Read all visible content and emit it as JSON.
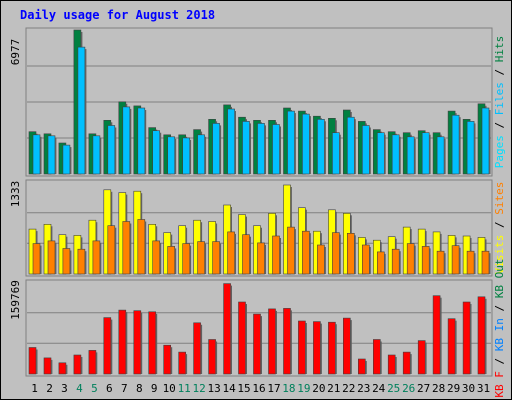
{
  "chart_data": {
    "type": "bar",
    "title": "Daily usage for August 2018",
    "categories": [
      "1",
      "2",
      "3",
      "4",
      "5",
      "6",
      "7",
      "8",
      "9",
      "10",
      "11",
      "12",
      "13",
      "14",
      "15",
      "16",
      "17",
      "18",
      "19",
      "20",
      "21",
      "22",
      "23",
      "24",
      "25",
      "26",
      "27",
      "28",
      "29",
      "30",
      "31"
    ],
    "weekend_days": [
      "4",
      "5",
      "11",
      "12",
      "18",
      "19",
      "25",
      "26"
    ],
    "panels": [
      {
        "id": "hits-files-pages",
        "ymax_label": "6977",
        "ylim": [
          0,
          6977
        ],
        "legend": [
          "Pages",
          "Files",
          "Hits"
        ],
        "series": [
          {
            "name": "Hits",
            "color": "#008040",
            "values": [
              2050,
              1950,
              1500,
              6977,
              1950,
              2600,
              3500,
              3300,
              2250,
              1900,
              1900,
              2150,
              2650,
              3350,
              2750,
              2600,
              2600,
              3200,
              3050,
              2800,
              2700,
              3100,
              2550,
              2150,
              2050,
              2000,
              2100,
              2000,
              3050,
              2650,
              3400
            ]
          },
          {
            "name": "Files",
            "color": "#00C0FF",
            "values": [
              1900,
              1850,
              1400,
              6150,
              1850,
              2350,
              3250,
              3200,
              2100,
              1800,
              1750,
              1900,
              2450,
              3150,
              2550,
              2450,
              2400,
              3050,
              2900,
              2650,
              2000,
              2750,
              2350,
              2000,
              1900,
              1800,
              2000,
              1800,
              2850,
              2550,
              3200
            ]
          },
          {
            "name": "Pages",
            "color": "#00E0FF",
            "values": [
              0,
              0,
              0,
              0,
              0,
              0,
              0,
              0,
              0,
              0,
              0,
              0,
              0,
              0,
              0,
              0,
              0,
              0,
              0,
              0,
              0,
              0,
              0,
              0,
              0,
              0,
              0,
              0,
              0,
              0,
              0
            ]
          }
        ]
      },
      {
        "id": "visits-sites",
        "ymax_label": "1333",
        "ylim": [
          0,
          1333
        ],
        "legend": [
          "Visits",
          "Sites"
        ],
        "series": [
          {
            "name": "Visits",
            "color": "#FFFF00",
            "values": [
              650,
              720,
              570,
              560,
              780,
              1220,
              1180,
              1200,
              720,
              600,
              700,
              780,
              760,
              1000,
              860,
              700,
              880,
              1290,
              960,
              620,
              930,
              880,
              530,
              490,
              540,
              680,
              650,
              610,
              560,
              550,
              530
            ]
          },
          {
            "name": "Sites",
            "color": "#FF8000",
            "values": [
              440,
              480,
              370,
              360,
              480,
              700,
              760,
              790,
              480,
              400,
              440,
              470,
              470,
              610,
              570,
              450,
              550,
              680,
              620,
              420,
              600,
              590,
              420,
              320,
              360,
              440,
              400,
              330,
              410,
              330,
              330
            ]
          }
        ]
      },
      {
        "id": "kbytes",
        "ymax_label": "159769",
        "ylim": [
          0,
          159769
        ],
        "legend": [
          "KB F",
          "KB In",
          "KB Out"
        ],
        "series": [
          {
            "name": "KB F",
            "color": "#FF0000",
            "values": [
              46000,
              28000,
              19500,
              33000,
              41000,
              98000,
              111000,
              110000,
              108000,
              50000,
              38000,
              89000,
              60000,
              157000,
              125000,
              104000,
              113000,
              114000,
              92000,
              91000,
              90000,
              97000,
              26000,
              60000,
              33000,
              38000,
              58000,
              136000,
              96000,
              125000,
              134000
            ]
          }
        ]
      }
    ]
  },
  "colors": {
    "background": "#C0C0C0",
    "frame_bg": "#FFFFFF",
    "title": "#0000FF",
    "gridline": "#808080",
    "weekday_label": "#000000",
    "weekend_label": "#00805C"
  }
}
